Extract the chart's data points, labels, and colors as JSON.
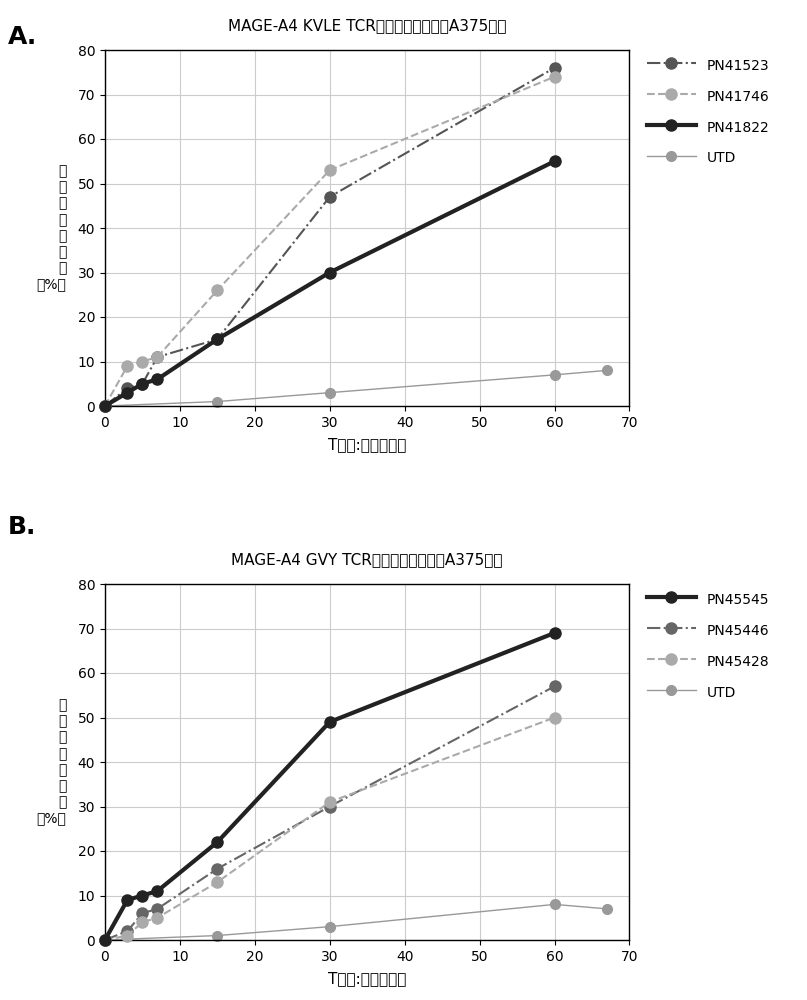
{
  "panel_A": {
    "title": "MAGE-A4 KVLE TCR介导的细胞毒性与A375细胞",
    "series": [
      {
        "label": "PN41523",
        "x": [
          0,
          3,
          5,
          7,
          15,
          30,
          60
        ],
        "y": [
          0,
          4,
          5,
          11,
          15,
          47,
          76
        ],
        "color": "#555555",
        "linestyle": "-.",
        "linewidth": 1.5,
        "marker": "o",
        "markersize": 8,
        "zorder": 3
      },
      {
        "label": "PN41746",
        "x": [
          0,
          3,
          5,
          7,
          15,
          30,
          60
        ],
        "y": [
          0,
          9,
          10,
          11,
          26,
          53,
          74
        ],
        "color": "#aaaaaa",
        "linestyle": "--",
        "linewidth": 1.5,
        "marker": "o",
        "markersize": 8,
        "zorder": 3
      },
      {
        "label": "PN41822",
        "x": [
          0,
          3,
          5,
          7,
          15,
          30,
          60
        ],
        "y": [
          0,
          3,
          5,
          6,
          15,
          30,
          55
        ],
        "color": "#222222",
        "linestyle": "-",
        "linewidth": 3.0,
        "marker": "o",
        "markersize": 8,
        "zorder": 4
      },
      {
        "label": "UTD",
        "x": [
          0,
          15,
          30,
          60,
          67
        ],
        "y": [
          0,
          1,
          3,
          7,
          8
        ],
        "color": "#999999",
        "linestyle": "-",
        "linewidth": 1.0,
        "marker": "o",
        "markersize": 7,
        "zorder": 2
      }
    ],
    "xlabel": "T细胞:靶细胞比率",
    "ylabel": "细\n胞\n毒\n性\n百\n分\n比\n（%）",
    "xlim": [
      0,
      70
    ],
    "ylim": [
      0,
      80
    ],
    "yticks": [
      0,
      10,
      20,
      30,
      40,
      50,
      60,
      70,
      80
    ],
    "xticks": [
      0,
      10,
      20,
      30,
      40,
      50,
      60,
      70
    ]
  },
  "panel_B": {
    "title": "MAGE-A4 GVY TCR介导的细胞毒性与A375细胞",
    "series": [
      {
        "label": "PN45545",
        "x": [
          0,
          3,
          5,
          7,
          15,
          30,
          60
        ],
        "y": [
          0,
          9,
          10,
          11,
          22,
          49,
          69
        ],
        "color": "#222222",
        "linestyle": "-",
        "linewidth": 3.0,
        "marker": "o",
        "markersize": 8,
        "zorder": 4
      },
      {
        "label": "PN45446",
        "x": [
          0,
          3,
          5,
          7,
          15,
          30,
          60
        ],
        "y": [
          0,
          2,
          6,
          7,
          16,
          30,
          57
        ],
        "color": "#666666",
        "linestyle": "-.",
        "linewidth": 1.5,
        "marker": "o",
        "markersize": 8,
        "zorder": 3
      },
      {
        "label": "PN45428",
        "x": [
          0,
          3,
          5,
          7,
          15,
          30,
          60
        ],
        "y": [
          0,
          1,
          4,
          5,
          13,
          31,
          50
        ],
        "color": "#aaaaaa",
        "linestyle": "--",
        "linewidth": 1.5,
        "marker": "o",
        "markersize": 8,
        "zorder": 3
      },
      {
        "label": "UTD",
        "x": [
          0,
          15,
          30,
          60,
          67
        ],
        "y": [
          0,
          1,
          3,
          8,
          7
        ],
        "color": "#999999",
        "linestyle": "-",
        "linewidth": 1.0,
        "marker": "o",
        "markersize": 7,
        "zorder": 2
      }
    ],
    "xlabel": "T细胞:靶细胞比率",
    "ylabel": "细\n胞\n毒\n性\n百\n分\n比\n（%）",
    "xlim": [
      0,
      70
    ],
    "ylim": [
      0,
      80
    ],
    "yticks": [
      0,
      10,
      20,
      30,
      40,
      50,
      60,
      70,
      80
    ],
    "xticks": [
      0,
      10,
      20,
      30,
      40,
      50,
      60,
      70
    ]
  },
  "background_color": "#ffffff",
  "label_A": "A.",
  "label_B": "B."
}
